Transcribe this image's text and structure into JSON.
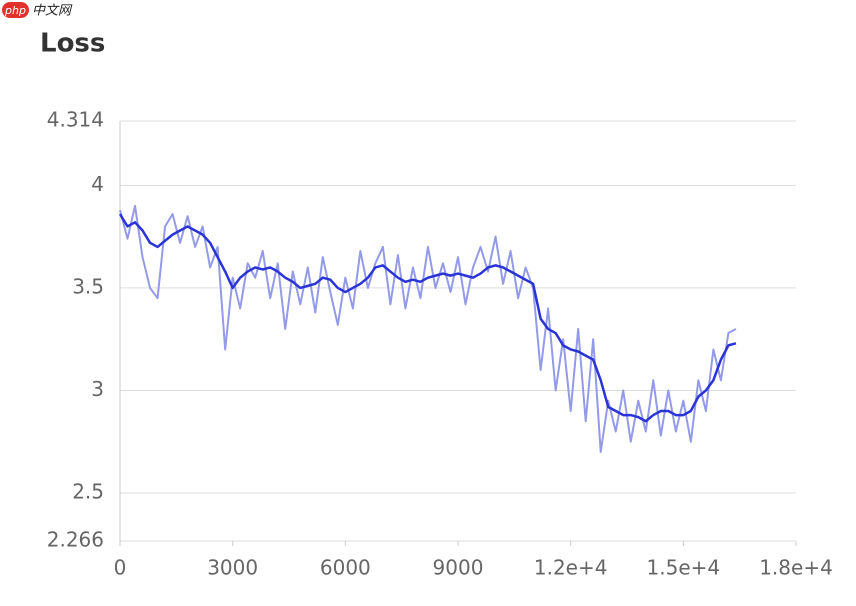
{
  "watermark": {
    "badge": "php",
    "text": "中文网"
  },
  "chart_data": {
    "type": "line",
    "title": "Loss",
    "x": [
      0,
      200,
      400,
      600,
      800,
      1000,
      1200,
      1400,
      1600,
      1800,
      2000,
      2200,
      2400,
      2600,
      2800,
      3000,
      3200,
      3400,
      3600,
      3800,
      4000,
      4200,
      4400,
      4600,
      4800,
      5000,
      5200,
      5400,
      5600,
      5800,
      6000,
      6200,
      6400,
      6600,
      6800,
      7000,
      7200,
      7400,
      7600,
      7800,
      8000,
      8200,
      8400,
      8600,
      8800,
      9000,
      9200,
      9400,
      9600,
      9800,
      10000,
      10200,
      10400,
      10600,
      10800,
      11000,
      11200,
      11400,
      11600,
      11800,
      12000,
      12200,
      12400,
      12600,
      12800,
      13000,
      13200,
      13400,
      13600,
      13800,
      14000,
      14200,
      14400,
      14600,
      14800,
      15000,
      15200,
      15400,
      15600,
      15800,
      16000,
      16200,
      16400
    ],
    "series": [
      {
        "color": "#939ae9",
        "values": [
          3.88,
          3.74,
          3.9,
          3.65,
          3.5,
          3.45,
          3.8,
          3.86,
          3.72,
          3.85,
          3.7,
          3.8,
          3.6,
          3.7,
          3.2,
          3.55,
          3.4,
          3.62,
          3.55,
          3.68,
          3.45,
          3.62,
          3.3,
          3.58,
          3.42,
          3.6,
          3.38,
          3.65,
          3.48,
          3.32,
          3.55,
          3.4,
          3.68,
          3.5,
          3.62,
          3.7,
          3.42,
          3.66,
          3.4,
          3.6,
          3.45,
          3.7,
          3.5,
          3.62,
          3.48,
          3.65,
          3.42,
          3.6,
          3.7,
          3.58,
          3.75,
          3.52,
          3.68,
          3.45,
          3.6,
          3.5,
          3.1,
          3.4,
          3.0,
          3.25,
          2.9,
          3.3,
          2.85,
          3.25,
          2.7,
          2.95,
          2.8,
          3.0,
          2.75,
          2.95,
          2.8,
          3.05,
          2.78,
          3.0,
          2.8,
          2.95,
          2.75,
          3.05,
          2.9,
          3.2,
          3.05,
          3.28,
          3.3
        ]
      },
      {
        "color": "#2a33d4",
        "values": [
          3.86,
          3.8,
          3.82,
          3.78,
          3.72,
          3.7,
          3.73,
          3.76,
          3.78,
          3.8,
          3.78,
          3.76,
          3.72,
          3.65,
          3.58,
          3.5,
          3.55,
          3.58,
          3.6,
          3.59,
          3.6,
          3.58,
          3.55,
          3.53,
          3.5,
          3.51,
          3.52,
          3.55,
          3.54,
          3.5,
          3.48,
          3.5,
          3.52,
          3.55,
          3.6,
          3.61,
          3.58,
          3.55,
          3.53,
          3.54,
          3.53,
          3.55,
          3.56,
          3.57,
          3.56,
          3.57,
          3.56,
          3.55,
          3.57,
          3.6,
          3.61,
          3.6,
          3.58,
          3.56,
          3.54,
          3.52,
          3.35,
          3.3,
          3.28,
          3.22,
          3.2,
          3.19,
          3.17,
          3.15,
          3.05,
          2.92,
          2.9,
          2.88,
          2.88,
          2.87,
          2.85,
          2.88,
          2.9,
          2.9,
          2.88,
          2.88,
          2.9,
          2.97,
          3.0,
          3.05,
          3.15,
          3.22,
          3.23
        ]
      }
    ],
    "xlim": [
      0,
      18000
    ],
    "xticks": [
      0,
      3000,
      6000,
      9000,
      {
        "value": 12000,
        "label": "1.2e+4"
      },
      {
        "value": 15000,
        "label": "1.5e+4"
      },
      {
        "value": 18000,
        "label": "1.8e+4"
      }
    ],
    "ylim": [
      2.266,
      4.314
    ],
    "yticks": [
      2.266,
      2.5,
      3,
      3.5,
      4,
      4.314
    ],
    "grid": true
  }
}
